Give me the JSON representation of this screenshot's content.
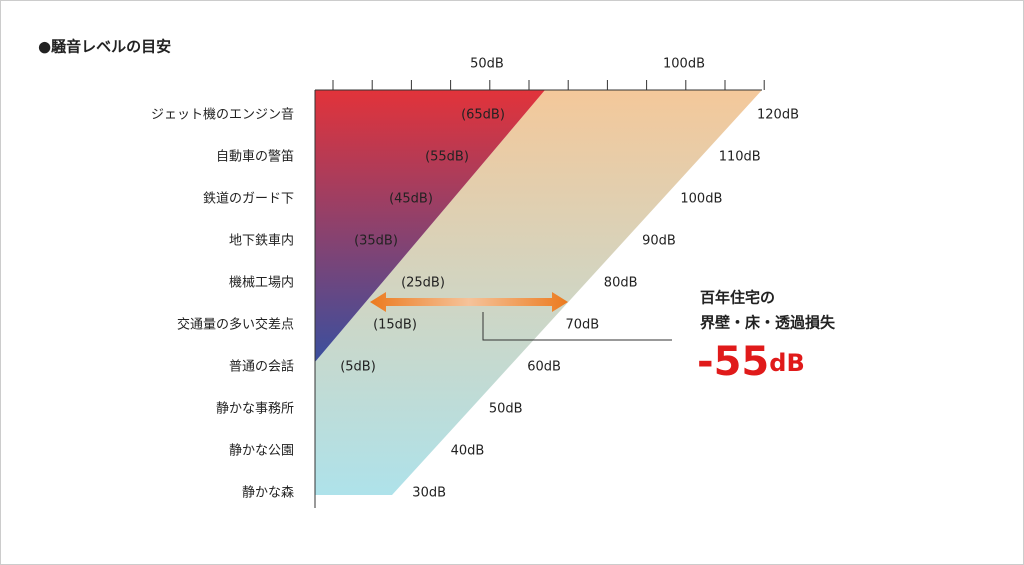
{
  "title": "●騒音レベルの目安",
  "axis": {
    "labels": [
      "50dB",
      "100dB"
    ]
  },
  "rows": [
    {
      "label": "ジェット機のエンジン音",
      "inner": "(65dB)",
      "outer": "120dB"
    },
    {
      "label": "自動車の警笛",
      "inner": "(55dB)",
      "outer": "110dB"
    },
    {
      "label": "鉄道のガード下",
      "inner": "(45dB)",
      "outer": "100dB"
    },
    {
      "label": "地下鉄車内",
      "inner": "(35dB)",
      "outer": "90dB"
    },
    {
      "label": "機械工場内",
      "inner": "(25dB)",
      "outer": "80dB"
    },
    {
      "label": "交通量の多い交差点",
      "inner": "(15dB)",
      "outer": "70dB"
    },
    {
      "label": "普通の会話",
      "inner": "(5dB)",
      "outer": "60dB"
    },
    {
      "label": "静かな事務所",
      "inner": null,
      "outer": "50dB"
    },
    {
      "label": "静かな公園",
      "inner": null,
      "outer": "40dB"
    },
    {
      "label": "静かな森",
      "inner": null,
      "outer": "30dB"
    }
  ],
  "callout": {
    "lines": [
      "百年住宅の",
      "界壁・床・透過損失"
    ],
    "value": "-55",
    "unit": "dB"
  }
}
